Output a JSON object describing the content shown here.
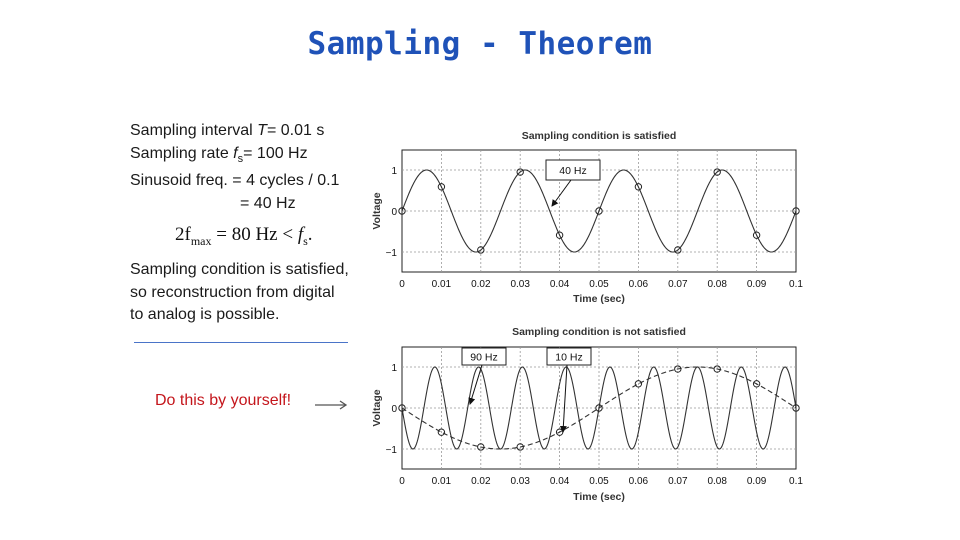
{
  "slide": {
    "title": "Sampling - Theorem",
    "info_lines": [
      {
        "pre": "Sampling interval ",
        "italic": "T",
        "post": "= 0.01 s"
      },
      {
        "pre": "Sampling rate ",
        "italic": "f",
        "sub": "s",
        "post": "= 100 Hz"
      },
      {
        "pre": "Sinusoid freq. = 4 cycles / 0.1",
        "italic": "",
        "post": ""
      },
      {
        "pre": "= 40 Hz",
        "italic": "",
        "post": ""
      }
    ],
    "formula": {
      "lhs": "2f",
      "lhs_sub": "max",
      "rel": " = 80 Hz < ",
      "rhs": "f",
      "rhs_sub": "s",
      "end": "."
    },
    "condition_lines": [
      "Sampling condition is satisfied,",
      "so reconstruction from digital",
      "to analog is possible."
    ],
    "task": "Do this by yourself!",
    "colors": {
      "title": "#1f52b8",
      "task": "#c4161c",
      "divider": "#4a74c8"
    }
  },
  "chart_data": [
    {
      "type": "line",
      "title": "Sampling condition is satisfied",
      "xlabel": "Time (sec)",
      "ylabel": "Voltage",
      "xlim": [
        0,
        0.1
      ],
      "ylim": [
        -1,
        1
      ],
      "xticks": [
        "0",
        "0.01",
        "0.02",
        "0.03",
        "0.04",
        "0.05",
        "0.06",
        "0.07",
        "0.08",
        "0.09",
        "0.1"
      ],
      "yticks": [
        "1",
        "0",
        "−1"
      ],
      "grid": true,
      "series": [
        {
          "name": "40 Hz",
          "frequency_hz": 40,
          "style": "solid"
        }
      ],
      "samples": {
        "x": [
          0,
          0.01,
          0.02,
          0.03,
          0.04,
          0.05,
          0.06,
          0.07,
          0.08,
          0.09,
          0.1
        ],
        "y": [
          0,
          0.59,
          -0.95,
          0.95,
          -0.59,
          0,
          0.59,
          -0.95,
          0.95,
          -0.59,
          0
        ]
      },
      "annotations": [
        {
          "text": "40 Hz",
          "series": "40 Hz"
        }
      ]
    },
    {
      "type": "line",
      "title": "Sampling condition is not satisfied",
      "xlabel": "Time (sec)",
      "ylabel": "Voltage",
      "xlim": [
        0,
        0.1
      ],
      "ylim": [
        -1,
        1
      ],
      "xticks": [
        "0",
        "0.01",
        "0.02",
        "0.03",
        "0.04",
        "0.05",
        "0.06",
        "0.07",
        "0.08",
        "0.09",
        "0.1"
      ],
      "yticks": [
        "1",
        "0",
        "−1"
      ],
      "grid": true,
      "series": [
        {
          "name": "90 Hz",
          "frequency_hz": 90,
          "style": "solid"
        },
        {
          "name": "10 Hz",
          "frequency_hz": 10,
          "style": "dashed"
        }
      ],
      "samples": {
        "x": [
          0,
          0.01,
          0.02,
          0.03,
          0.04,
          0.05,
          0.06,
          0.07,
          0.08,
          0.09,
          0.1
        ],
        "y": [
          0,
          -0.59,
          -0.95,
          -0.95,
          -0.59,
          0,
          0.59,
          0.95,
          0.95,
          0.59,
          0
        ]
      },
      "annotations": [
        {
          "text": "90 Hz",
          "series": "90 Hz"
        },
        {
          "text": "10 Hz",
          "series": "10 Hz"
        }
      ]
    }
  ]
}
